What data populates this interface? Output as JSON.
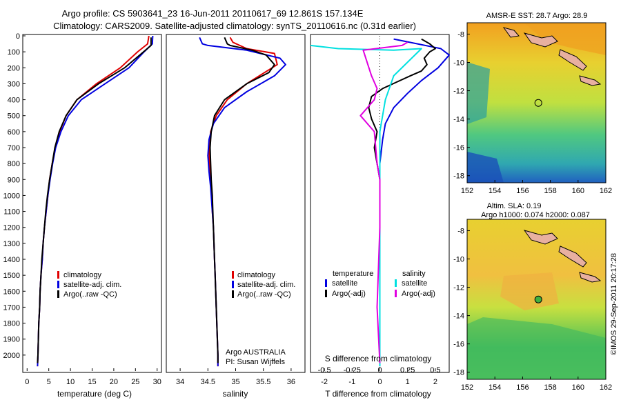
{
  "title_lines": [
    "Argo profile: CS 5903641_23 16-Jun-2011 20110617_69 12.861S 157.134E",
    "Climatology: CARS2009. Satellite-adjusted climatology: synTS_20110616.nc (0.31d earlier)"
  ],
  "colors": {
    "clim": "#e00000",
    "sat": "#0000e0",
    "argo": "#000000",
    "satS": "#00e0e0",
    "argoS": "#e000e0"
  },
  "chart_data": [
    {
      "id": "temperature",
      "type": "line",
      "xlabel": "temperature (deg C)",
      "xlim": [
        -1,
        31
      ],
      "ylim": [
        2100,
        0
      ],
      "xticks": [
        0,
        5,
        10,
        15,
        20,
        25,
        30
      ],
      "yticks": [
        0,
        100,
        200,
        300,
        400,
        500,
        600,
        700,
        800,
        900,
        1000,
        1100,
        1200,
        1300,
        1400,
        1500,
        1600,
        1700,
        1800,
        1900,
        2000
      ],
      "legend": [
        "climatology",
        "satellite-adj. clim.",
        "Argo(..raw -QC)"
      ],
      "series": [
        {
          "name": "climatology",
          "color": "clim",
          "points": [
            [
              28.1,
              0
            ],
            [
              27.8,
              50
            ],
            [
              25.5,
              100
            ],
            [
              21.5,
              200
            ],
            [
              16,
              300
            ],
            [
              11.5,
              400
            ],
            [
              9,
              500
            ],
            [
              7.5,
              600
            ],
            [
              6.5,
              700
            ],
            [
              5.8,
              800
            ],
            [
              5.2,
              900
            ],
            [
              4.8,
              1000
            ],
            [
              4.4,
              1100
            ],
            [
              4,
              1200
            ],
            [
              3.7,
              1300
            ],
            [
              3.5,
              1400
            ],
            [
              3.2,
              1500
            ],
            [
              3,
              1600
            ],
            [
              2.9,
              1700
            ],
            [
              2.7,
              1800
            ],
            [
              2.6,
              1900
            ],
            [
              2.5,
              2000
            ],
            [
              2.4,
              2070
            ]
          ]
        },
        {
          "name": "satellite-adj. clim.",
          "color": "sat",
          "points": [
            [
              29,
              0
            ],
            [
              28.9,
              50
            ],
            [
              27,
              100
            ],
            [
              23.5,
              200
            ],
            [
              18,
              300
            ],
            [
              12.5,
              400
            ],
            [
              9.5,
              500
            ],
            [
              7.8,
              600
            ],
            [
              6.6,
              700
            ],
            [
              5.9,
              800
            ],
            [
              5.3,
              900
            ],
            [
              4.8,
              1000
            ],
            [
              4.4,
              1100
            ],
            [
              4,
              1200
            ],
            [
              3.7,
              1300
            ],
            [
              3.5,
              1400
            ],
            [
              3.2,
              1500
            ],
            [
              3,
              1600
            ],
            [
              2.9,
              1700
            ],
            [
              2.7,
              1800
            ],
            [
              2.6,
              1900
            ],
            [
              2.5,
              2000
            ],
            [
              2.4,
              2070
            ]
          ]
        },
        {
          "name": "Argo(..raw -QC)",
          "color": "argo",
          "points": [
            [
              28.6,
              10
            ],
            [
              28.6,
              60
            ],
            [
              26,
              120
            ],
            [
              22.5,
              200
            ],
            [
              16.5,
              300
            ],
            [
              11.5,
              400
            ],
            [
              9,
              500
            ],
            [
              7.4,
              600
            ],
            [
              6.4,
              700
            ],
            [
              5.8,
              800
            ],
            [
              5.2,
              900
            ],
            [
              4.7,
              1000
            ],
            [
              4.3,
              1100
            ],
            [
              4,
              1200
            ],
            [
              3.7,
              1300
            ],
            [
              3.4,
              1400
            ],
            [
              3.2,
              1500
            ],
            [
              3,
              1600
            ],
            [
              2.9,
              1700
            ],
            [
              2.7,
              1800
            ],
            [
              2.6,
              1900
            ],
            [
              2.5,
              2000
            ],
            [
              2.4,
              2050
            ]
          ]
        }
      ]
    },
    {
      "id": "salinity",
      "type": "line",
      "xlabel": "salinity",
      "xlim": [
        33.75,
        36.25
      ],
      "ylim": [
        2100,
        0
      ],
      "xticks": [
        34,
        34.5,
        35,
        35.5,
        36
      ],
      "legend": [
        "climatology",
        "satellite-adj. clim.",
        "Argo(..raw -QC)"
      ],
      "annotations": [
        "Argo AUSTRALIA",
        "PI: Susan Wijffels"
      ],
      "series": [
        {
          "name": "climatology",
          "color": "clim",
          "points": [
            [
              34.9,
              10
            ],
            [
              34.95,
              40
            ],
            [
              35.2,
              80
            ],
            [
              35.7,
              110
            ],
            [
              35.75,
              180
            ],
            [
              35.2,
              300
            ],
            [
              34.85,
              400
            ],
            [
              34.65,
              500
            ],
            [
              34.55,
              600
            ],
            [
              34.52,
              700
            ],
            [
              34.53,
              800
            ],
            [
              34.55,
              900
            ],
            [
              34.57,
              1000
            ],
            [
              34.58,
              1100
            ],
            [
              34.6,
              1200
            ],
            [
              34.61,
              1300
            ],
            [
              34.62,
              1400
            ],
            [
              34.63,
              1500
            ],
            [
              34.64,
              1600
            ],
            [
              34.65,
              1700
            ],
            [
              34.66,
              1800
            ],
            [
              34.67,
              1900
            ],
            [
              34.68,
              2000
            ],
            [
              34.68,
              2070
            ]
          ]
        },
        {
          "name": "satellite-adj. clim.",
          "color": "sat",
          "points": [
            [
              34.35,
              10
            ],
            [
              34.4,
              50
            ],
            [
              34.5,
              60
            ],
            [
              35.2,
              90
            ],
            [
              35.8,
              140
            ],
            [
              35.9,
              180
            ],
            [
              35.7,
              250
            ],
            [
              35.2,
              350
            ],
            [
              34.8,
              450
            ],
            [
              34.6,
              550
            ],
            [
              34.52,
              650
            ],
            [
              34.5,
              750
            ],
            [
              34.52,
              850
            ],
            [
              34.55,
              950
            ],
            [
              34.57,
              1050
            ],
            [
              34.6,
              1200
            ],
            [
              34.61,
              1300
            ],
            [
              34.62,
              1400
            ],
            [
              34.63,
              1500
            ],
            [
              34.64,
              1600
            ],
            [
              34.65,
              1700
            ],
            [
              34.66,
              1800
            ],
            [
              34.67,
              1900
            ],
            [
              34.68,
              2000
            ],
            [
              34.68,
              2070
            ]
          ]
        },
        {
          "name": "Argo(..raw -QC)",
          "color": "argo",
          "points": [
            [
              34.8,
              10
            ],
            [
              34.85,
              50
            ],
            [
              34.9,
              60
            ],
            [
              35.3,
              90
            ],
            [
              35.55,
              120
            ],
            [
              35.7,
              180
            ],
            [
              35.6,
              230
            ],
            [
              35.2,
              300
            ],
            [
              34.8,
              400
            ],
            [
              34.62,
              500
            ],
            [
              34.56,
              600
            ],
            [
              34.54,
              700
            ],
            [
              34.55,
              800
            ],
            [
              34.56,
              900
            ],
            [
              34.58,
              1000
            ],
            [
              34.59,
              1100
            ],
            [
              34.6,
              1200
            ],
            [
              34.61,
              1300
            ],
            [
              34.62,
              1400
            ],
            [
              34.63,
              1500
            ],
            [
              34.64,
              1600
            ],
            [
              34.65,
              1700
            ],
            [
              34.66,
              1800
            ],
            [
              34.67,
              1900
            ],
            [
              34.68,
              2000
            ],
            [
              34.68,
              2050
            ]
          ]
        }
      ]
    },
    {
      "id": "difference",
      "type": "line",
      "xlabel": "T difference from climatology",
      "x2label": "S difference from climatology",
      "xlim": [
        -2.5,
        2.5
      ],
      "ylim": [
        2100,
        0
      ],
      "xticks": [
        -2,
        -1,
        0,
        1,
        2
      ],
      "x2ticks_labels": [
        "-0.5",
        "-0.25",
        "0",
        "0.25",
        "0.5"
      ],
      "x2ticks_pos": [
        -2,
        -1,
        0,
        1,
        2
      ],
      "legend_t_title": "temperature",
      "legend_s_title": "salinity",
      "legend": [
        "satellite",
        "Argo(-adj)",
        "satellite",
        "Argo(-adj)"
      ],
      "series": [
        {
          "name": "T satellite",
          "color": "sat",
          "points": [
            [
              0.5,
              20
            ],
            [
              2.2,
              80
            ],
            [
              2.5,
              120
            ],
            [
              2.1,
              200
            ],
            [
              1.5,
              280
            ],
            [
              1,
              360
            ],
            [
              0.5,
              450
            ],
            [
              0.2,
              550
            ],
            [
              0.1,
              650
            ],
            [
              0,
              800
            ],
            [
              0,
              1000
            ],
            [
              0,
              2070
            ]
          ]
        },
        {
          "name": "T Argo(-adj)",
          "color": "argo",
          "points": [
            [
              1.5,
              20
            ],
            [
              1.8,
              50
            ],
            [
              2,
              80
            ],
            [
              1.8,
              100
            ],
            [
              1.6,
              140
            ],
            [
              1.7,
              180
            ],
            [
              1.5,
              220
            ],
            [
              1.1,
              250
            ],
            [
              0.6,
              290
            ],
            [
              0.1,
              330
            ],
            [
              -0.3,
              380
            ],
            [
              -0.4,
              450
            ],
            [
              -0.3,
              520
            ],
            [
              -0.1,
              600
            ],
            [
              -0.2,
              700
            ],
            [
              -0.1,
              800
            ],
            [
              0,
              900
            ],
            [
              0,
              1100
            ],
            [
              0,
              2050
            ]
          ]
        },
        {
          "name": "S satellite",
          "color": "satS",
          "points": [
            [
              -2.5,
              60
            ],
            [
              -1.5,
              80
            ],
            [
              0.5,
              90
            ],
            [
              1.5,
              80
            ],
            [
              0.5,
              250
            ],
            [
              0.2,
              400
            ],
            [
              0,
              600
            ],
            [
              0,
              800
            ],
            [
              0,
              1100
            ],
            [
              0,
              2070
            ]
          ]
        },
        {
          "name": "S Argo(-adj)",
          "color": "argoS",
          "points": [
            [
              1,
              40
            ],
            [
              0.8,
              60
            ],
            [
              -0.6,
              90
            ],
            [
              -0.3,
              250
            ],
            [
              -0.1,
              330
            ],
            [
              -0.2,
              400
            ],
            [
              -0.7,
              500
            ],
            [
              -0.2,
              600
            ],
            [
              -0.1,
              800
            ],
            [
              0,
              900
            ],
            [
              0,
              1200
            ],
            [
              -0.1,
              1700
            ],
            [
              0,
              2050
            ]
          ]
        }
      ]
    },
    {
      "id": "sst-map",
      "type": "heatmap",
      "title": "AMSR-E SST: 28.7 Argo: 28.9",
      "xlim": [
        152,
        162
      ],
      "ylim": [
        -18.5,
        -7.2
      ],
      "xticks": [
        152,
        154,
        156,
        158,
        160,
        162
      ],
      "yticks": [
        -8,
        -10,
        -12,
        -14,
        -16,
        -18
      ],
      "marker": [
        157.134,
        -12.861
      ]
    },
    {
      "id": "sla-map",
      "type": "heatmap",
      "title_lines": [
        "Altim. SLA: 0.19",
        "Argo h1000: 0.074 h2000: 0.087"
      ],
      "xlim": [
        152,
        162
      ],
      "ylim": [
        -18.5,
        -7.2
      ],
      "xticks": [
        152,
        154,
        156,
        158,
        160,
        162
      ],
      "yticks": [
        -8,
        -10,
        -12,
        -14,
        -16,
        -18
      ],
      "marker": [
        157.134,
        -12.861
      ]
    }
  ],
  "credit": "©IMOS 29-Sep-2011 20:17:28"
}
